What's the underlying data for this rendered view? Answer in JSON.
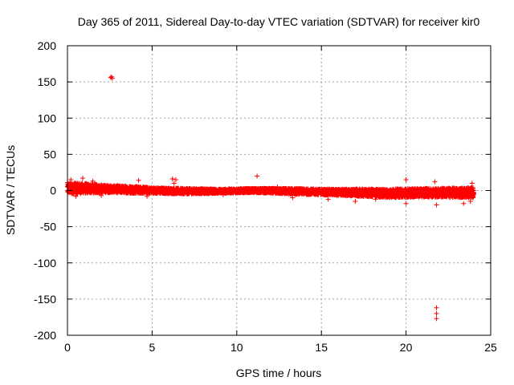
{
  "chart_data": {
    "type": "scatter",
    "title": "Day 365 of 2011, Sidereal Day-to-day VTEC variation (SDTVAR) for receiver kir0",
    "xlabel": "GPS time / hours",
    "ylabel": "SDTVAR / TECUs",
    "xlim": [
      0,
      25
    ],
    "ylim": [
      -200,
      200
    ],
    "xticks": [
      0,
      5,
      10,
      15,
      20,
      25
    ],
    "yticks": [
      -200,
      -150,
      -100,
      -50,
      0,
      50,
      100,
      150,
      200
    ],
    "grid": true,
    "marker": "+",
    "color": "#ff0000",
    "band": {
      "description_points": [
        {
          "x": 0.0,
          "center": 3,
          "half_width": 8
        },
        {
          "x": 1.0,
          "center": 3,
          "half_width": 7
        },
        {
          "x": 2.5,
          "center": 2,
          "half_width": 5
        },
        {
          "x": 4.0,
          "center": 1,
          "half_width": 5
        },
        {
          "x": 5.0,
          "center": 0,
          "half_width": 4
        },
        {
          "x": 7.0,
          "center": -1,
          "half_width": 4
        },
        {
          "x": 9.0,
          "center": -1,
          "half_width": 3
        },
        {
          "x": 11.0,
          "center": 0,
          "half_width": 3
        },
        {
          "x": 13.0,
          "center": -1,
          "half_width": 4
        },
        {
          "x": 15.0,
          "center": -2,
          "half_width": 4
        },
        {
          "x": 17.0,
          "center": -3,
          "half_width": 5
        },
        {
          "x": 19.0,
          "center": -4,
          "half_width": 6
        },
        {
          "x": 21.0,
          "center": -3,
          "half_width": 6
        },
        {
          "x": 24.0,
          "center": -3,
          "half_width": 7
        }
      ]
    },
    "outliers": [
      {
        "x": 2.6,
        "y": 157
      },
      {
        "x": 2.65,
        "y": 155
      },
      {
        "x": 2.55,
        "y": 156
      },
      {
        "x": 0.2,
        "y": 15
      },
      {
        "x": 0.9,
        "y": 17
      },
      {
        "x": 1.5,
        "y": 13
      },
      {
        "x": 4.2,
        "y": 14
      },
      {
        "x": 6.2,
        "y": 16
      },
      {
        "x": 6.4,
        "y": 15
      },
      {
        "x": 6.3,
        "y": 10
      },
      {
        "x": 11.2,
        "y": 20
      },
      {
        "x": 13.3,
        "y": -10
      },
      {
        "x": 15.4,
        "y": -12
      },
      {
        "x": 17.0,
        "y": -15
      },
      {
        "x": 18.2,
        "y": -12
      },
      {
        "x": 20.0,
        "y": 15
      },
      {
        "x": 20.0,
        "y": -18
      },
      {
        "x": 21.7,
        "y": 12
      },
      {
        "x": 21.8,
        "y": -20
      },
      {
        "x": 21.8,
        "y": -162
      },
      {
        "x": 21.8,
        "y": -170
      },
      {
        "x": 21.8,
        "y": -177
      },
      {
        "x": 23.4,
        "y": -18
      },
      {
        "x": 23.9,
        "y": 10
      },
      {
        "x": 23.8,
        "y": -15
      },
      {
        "x": 4.7,
        "y": -8
      },
      {
        "x": 9.2,
        "y": -6
      },
      {
        "x": 12.4,
        "y": 5
      },
      {
        "x": 0.5,
        "y": -8
      },
      {
        "x": 2.0,
        "y": -7
      }
    ]
  }
}
